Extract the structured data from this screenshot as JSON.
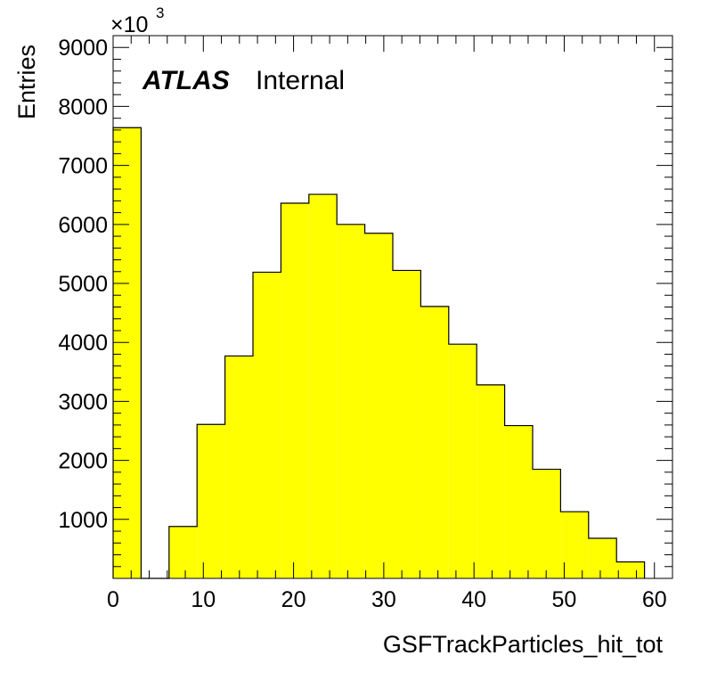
{
  "chart_data": {
    "type": "bar",
    "xlabel": "GSFTrackParticles_hit_tot",
    "ylabel": "Entries",
    "y_multiplier": "×10",
    "y_multiplier_exp": "3",
    "xlim": [
      0,
      62
    ],
    "ylim": [
      0,
      9200
    ],
    "x_ticks": [
      0,
      10,
      20,
      30,
      40,
      50,
      60
    ],
    "y_ticks": [
      1000,
      2000,
      3000,
      4000,
      5000,
      6000,
      7000,
      8000,
      9000
    ],
    "bin_edges": [
      0,
      3.1,
      6.2,
      9.3,
      12.4,
      15.5,
      18.6,
      21.7,
      24.8,
      27.9,
      31.0,
      34.1,
      37.2,
      40.3,
      43.4,
      46.5,
      49.6,
      52.7,
      55.8,
      58.9
    ],
    "values": [
      7640,
      0,
      880,
      2610,
      3770,
      5190,
      6360,
      6510,
      6000,
      5850,
      5220,
      4610,
      3970,
      3280,
      2590,
      1850,
      1130,
      680,
      280
    ],
    "fill_color": "#ffff00",
    "line_color": "#000000"
  },
  "label": {
    "atlas": "ATLAS",
    "internal": "Internal"
  }
}
